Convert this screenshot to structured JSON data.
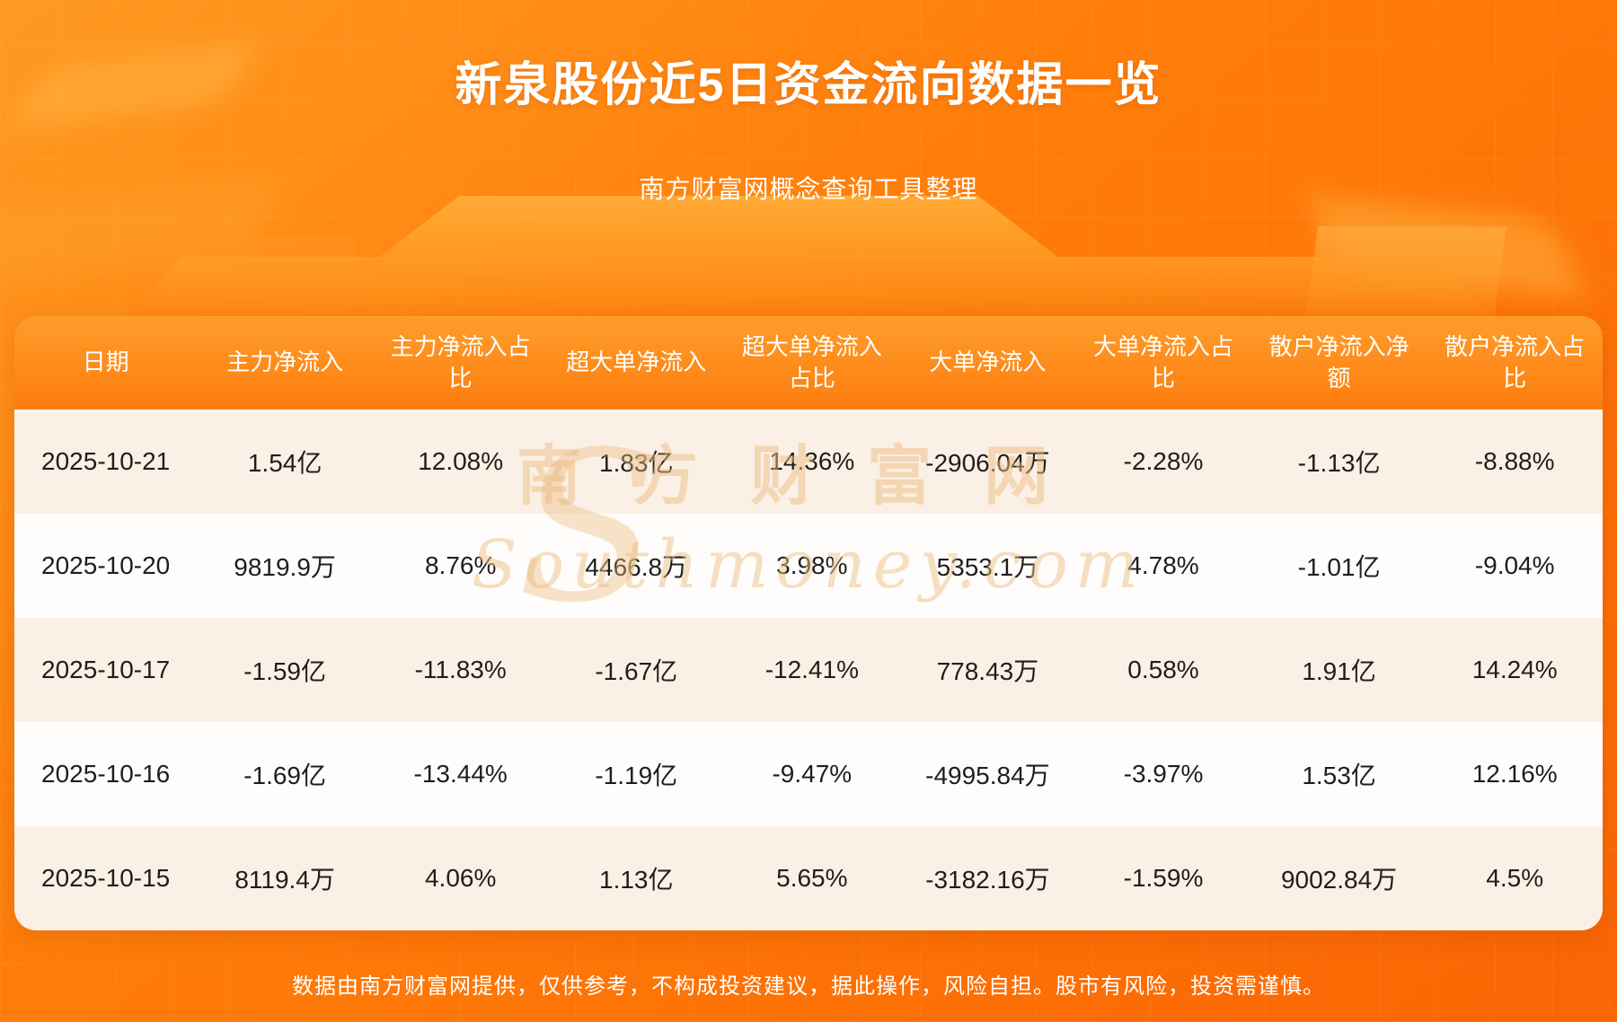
{
  "header": {
    "title": "新泉股份近5日资金流向数据一览",
    "subtitle": "南方财富网概念查询工具整理"
  },
  "chart_data": {
    "type": "table",
    "columns": [
      "日期",
      "主力净流入",
      "主力净流入占比",
      "超大单净流入",
      "超大单净流入占比",
      "大单净流入",
      "大单净流入占比",
      "散户净流入净额",
      "散户净流入占比"
    ],
    "rows": [
      [
        "2025-10-21",
        "1.54亿",
        "12.08%",
        "1.83亿",
        "14.36%",
        "-2906.04万",
        "-2.28%",
        "-1.13亿",
        "-8.88%"
      ],
      [
        "2025-10-20",
        "9819.9万",
        "8.76%",
        "4466.8万",
        "3.98%",
        "5353.1万",
        "4.78%",
        "-1.01亿",
        "-9.04%"
      ],
      [
        "2025-10-17",
        "-1.59亿",
        "-11.83%",
        "-1.67亿",
        "-12.41%",
        "778.43万",
        "0.58%",
        "1.91亿",
        "14.24%"
      ],
      [
        "2025-10-16",
        "-1.69亿",
        "-13.44%",
        "-1.19亿",
        "-9.47%",
        "-4995.84万",
        "-3.97%",
        "1.53亿",
        "12.16%"
      ],
      [
        "2025-10-15",
        "8119.4万",
        "4.06%",
        "1.13亿",
        "5.65%",
        "-3182.16万",
        "-1.59%",
        "9002.84万",
        "4.5%"
      ]
    ]
  },
  "watermark": {
    "initial": "S",
    "cn": "南方财富网",
    "en": "Southmoney.com"
  },
  "footer": {
    "disclaimer": "数据由南方财富网提供，仅供参考，不构成投资建议，据此操作，风险自担。股市有风险，投资需谨慎。"
  },
  "colors": {
    "background_top": "#ff9a22",
    "background_bottom": "#fa6503",
    "header_gradient_top": "#ff9d2a",
    "header_gradient_bottom": "#fc7d0f",
    "row_alt": "#fbf0e5",
    "row": "#fffdfb",
    "table_text": "#1e1e1e",
    "title_text": "#ffffff"
  }
}
